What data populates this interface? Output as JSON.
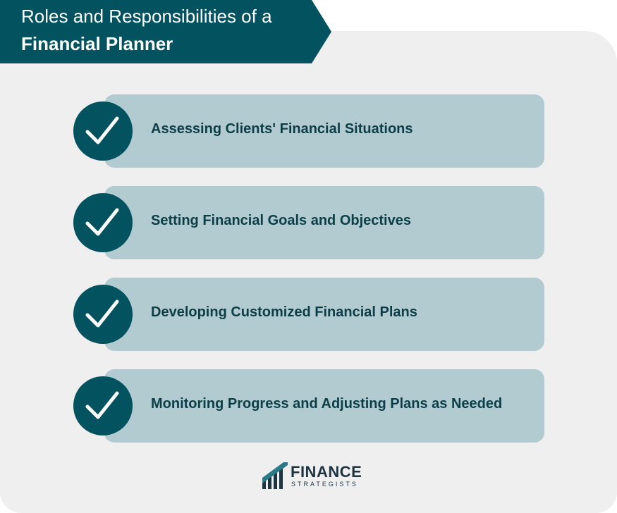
{
  "header": {
    "title_line1": "Roles and Responsibilities of a",
    "title_line2": "Financial Planner"
  },
  "items": [
    {
      "label": "Assessing Clients' Financial Situations",
      "icon": "checkmark-icon"
    },
    {
      "label": "Setting Financial Goals and Objectives",
      "icon": "checkmark-icon"
    },
    {
      "label": "Developing Customized Financial Plans",
      "icon": "checkmark-icon"
    },
    {
      "label": "Monitoring Progress and Adjusting Plans as Needed",
      "icon": "checkmark-icon"
    }
  ],
  "logo": {
    "word1": "FINANCE",
    "word2": "STRATEGISTS"
  },
  "colors": {
    "banner": "#02525f",
    "panel": "#efefef",
    "bar": "#b2cbd0",
    "circle": "#02525f",
    "item_text": "#0c3e47"
  }
}
